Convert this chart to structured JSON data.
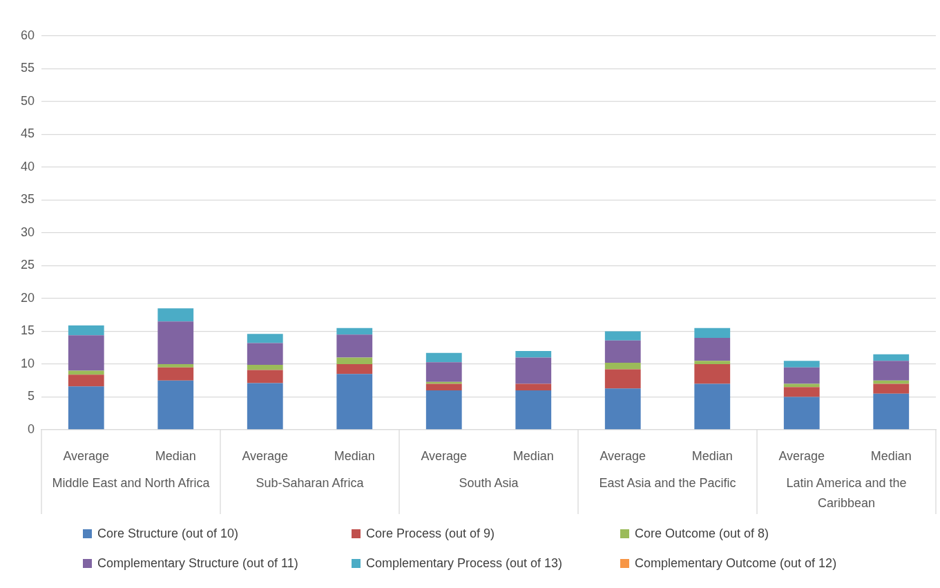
{
  "chart_data": {
    "type": "bar",
    "stacked": true,
    "categories": [
      "Average",
      "Median",
      "Average",
      "Median",
      "Average",
      "Median",
      "Average",
      "Median",
      "Average",
      "Median"
    ],
    "annotations": [
      "Middle East and North Africa",
      "Sub-Saharan Africa",
      "South Asia",
      "East Asia and the Pacific",
      "Latin America and the Caribbean"
    ],
    "series": [
      {
        "name": "Core Structure (out of 10)",
        "color": "#4f81bd",
        "values": [
          6.6,
          7.5,
          7.1,
          8.5,
          6,
          6,
          6.3,
          7,
          5,
          5.5
        ]
      },
      {
        "name": "Core Process (out of 9)",
        "color": "#c0504d",
        "values": [
          1.8,
          2,
          2,
          1.5,
          1,
          1,
          2.9,
          3,
          1.5,
          1.5
        ]
      },
      {
        "name": "Core Outcome (out of 8)",
        "color": "#9bbb59",
        "values": [
          0.6,
          0.5,
          0.8,
          1,
          0.3,
          0,
          1,
          0.5,
          0.5,
          0.5
        ]
      },
      {
        "name": "Complementary Structure (out of 11)",
        "color": "#8064a2",
        "values": [
          5.4,
          6.5,
          3.3,
          3.5,
          3,
          4,
          3.4,
          3.5,
          2.5,
          3
        ]
      },
      {
        "name": "Complementary Process (out of 13)",
        "color": "#4bacc6",
        "values": [
          1.5,
          2,
          1.4,
          1,
          1.4,
          1,
          1.4,
          1.5,
          1,
          1
        ]
      },
      {
        "name": "Complementary Outcome (out of 12)",
        "color": "#f79646",
        "values": [
          0,
          0,
          0,
          0,
          0,
          0,
          0,
          0,
          0,
          0
        ]
      }
    ],
    "ylim": [
      0,
      60
    ],
    "yticks": [
      0,
      5,
      10,
      15,
      20,
      25,
      30,
      35,
      40,
      45,
      50,
      55,
      60
    ],
    "grid": "y",
    "legend": "bottom"
  }
}
